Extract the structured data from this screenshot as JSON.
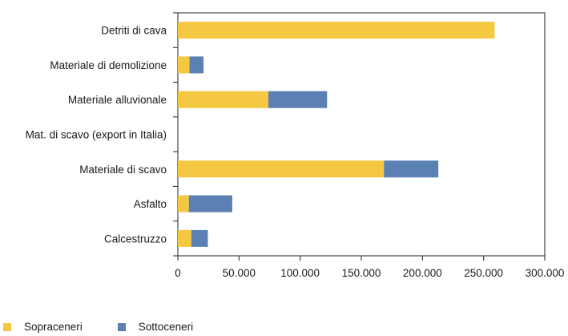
{
  "chart_data": {
    "type": "bar",
    "orientation": "horizontal",
    "stacked": true,
    "title": "",
    "xlabel": "",
    "ylabel": "",
    "categories": [
      "Detriti di cava",
      "Materiale di demolizione",
      "Materiale alluvionale",
      "Mat. di scavo (export in Italia)",
      "Materiale di scavo",
      "Asfalto",
      "Calcestruzzo"
    ],
    "series": [
      {
        "name": "Sopraceneri",
        "color": "#f5c842",
        "values": [
          259000,
          9500,
          74000,
          0,
          168500,
          9000,
          11000
        ]
      },
      {
        "name": "Sottoceneri",
        "color": "#5b80b4",
        "values": [
          0,
          11500,
          48000,
          0,
          44500,
          35500,
          13500
        ]
      }
    ],
    "xlim": [
      0,
      300000
    ],
    "xticks": [
      0,
      50000,
      100000,
      150000,
      200000,
      250000,
      300000
    ],
    "xtick_labels": [
      "0",
      "50.000",
      "100.000",
      "150.000",
      "200.000",
      "250.000",
      "300.000"
    ],
    "grid": false,
    "legend_position": "bottom-left"
  },
  "legend": [
    {
      "label": "Sopraceneri",
      "color": "#f5c842"
    },
    {
      "label": "Sottoceneri",
      "color": "#5b80b4"
    }
  ]
}
